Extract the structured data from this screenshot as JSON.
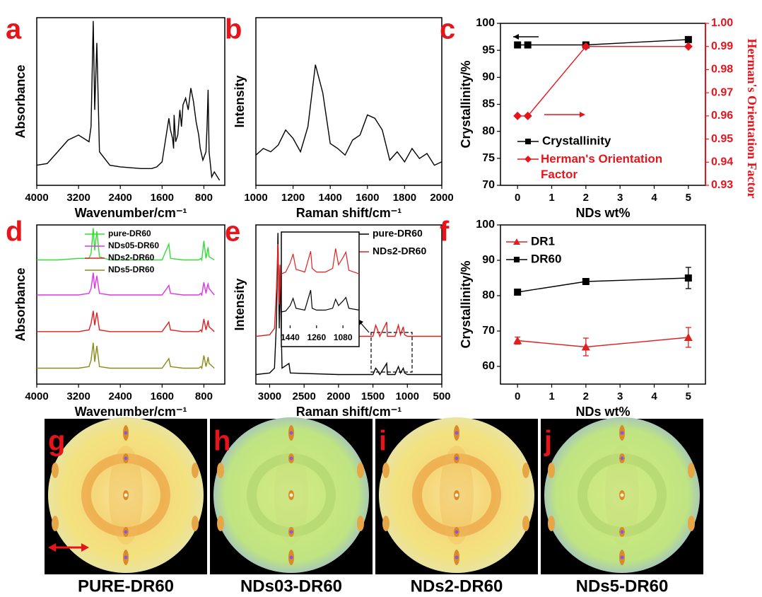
{
  "chart_data": [
    {
      "type": "line",
      "panel": "a",
      "ylabel": "Absorbance",
      "xlabel": "Wavenumber/cm⁻¹",
      "xlim": [
        4000,
        400
      ],
      "xticks": [
        4000,
        3200,
        2400,
        1600,
        800
      ],
      "ylim": [
        0,
        1
      ],
      "x": [
        4000,
        3800,
        3600,
        3400,
        3200,
        3000,
        2960,
        2918,
        2890,
        2850,
        2800,
        2600,
        2400,
        2000,
        1800,
        1700,
        1600,
        1470,
        1440,
        1400,
        1380,
        1370,
        1340,
        1300,
        1260,
        1230,
        1200,
        1150,
        1100,
        1050,
        1000,
        950,
        900,
        870,
        820,
        760,
        740,
        720,
        700,
        650,
        600,
        500
      ],
      "series": [
        {
          "color": "#000000",
          "values": [
            0.12,
            0.13,
            0.2,
            0.27,
            0.3,
            0.26,
            0.35,
            0.98,
            0.45,
            0.85,
            0.2,
            0.12,
            0.11,
            0.1,
            0.1,
            0.11,
            0.14,
            0.4,
            0.33,
            0.28,
            0.22,
            0.42,
            0.26,
            0.3,
            0.45,
            0.35,
            0.48,
            0.52,
            0.45,
            0.58,
            0.5,
            0.38,
            0.3,
            0.22,
            0.15,
            0.2,
            0.35,
            0.57,
            0.2,
            0.05,
            0.08,
            0.03
          ]
        }
      ]
    },
    {
      "type": "line",
      "panel": "b",
      "ylabel": "Intensity",
      "xlabel": "Raman shift/cm⁻¹",
      "xlim": [
        1000,
        2000
      ],
      "xticks": [
        1000,
        1200,
        1400,
        1600,
        1800,
        2000
      ],
      "ylim": [
        0,
        1
      ],
      "x": [
        1000,
        1040,
        1080,
        1120,
        1160,
        1200,
        1240,
        1280,
        1320,
        1360,
        1400,
        1440,
        1480,
        1520,
        1560,
        1600,
        1640,
        1680,
        1720,
        1760,
        1800,
        1840,
        1880,
        1920,
        1960,
        2000
      ],
      "series": [
        {
          "color": "#000000",
          "values": [
            0.18,
            0.22,
            0.2,
            0.24,
            0.33,
            0.28,
            0.2,
            0.35,
            0.72,
            0.55,
            0.25,
            0.22,
            0.18,
            0.27,
            0.3,
            0.42,
            0.4,
            0.33,
            0.15,
            0.2,
            0.14,
            0.22,
            0.16,
            0.19,
            0.12,
            0.14
          ]
        }
      ]
    },
    {
      "type": "line",
      "panel": "c",
      "ylabel": "Crystallinity/%",
      "y2label": "Herman's Orientation Factor",
      "xlabel": "NDs wt%",
      "xlim": [
        -0.5,
        5.5
      ],
      "xticks": [
        0,
        1,
        2,
        3,
        4,
        5
      ],
      "ylim": [
        70,
        100
      ],
      "yticks": [
        70,
        75,
        80,
        85,
        90,
        95,
        100
      ],
      "y2lim": [
        0.93,
        1.0
      ],
      "y2ticks": [
        0.93,
        0.94,
        0.95,
        0.96,
        0.97,
        0.98,
        0.99,
        {
          "value": 1.0,
          "label": "1.00"
        }
      ],
      "x": [
        0,
        0.3,
        2,
        5
      ],
      "series": [
        {
          "name": "Crystallinity",
          "color": "#000000",
          "marker": "square",
          "values": [
            96,
            96,
            96,
            97
          ]
        },
        {
          "name": "Herman's Orientation Factor",
          "color": "#e8141c",
          "marker": "diamond",
          "axis": "y2",
          "values": [
            0.96,
            0.96,
            0.99,
            0.99
          ]
        }
      ]
    },
    {
      "type": "line",
      "panel": "d",
      "ylabel": "Absorbance",
      "xlabel": "Wavenumber/cm⁻¹",
      "xlim": [
        4000,
        400
      ],
      "xticks": [
        4000,
        3200,
        2400,
        1600,
        800
      ],
      "ylim": [
        0,
        1
      ],
      "x": [
        4000,
        3600,
        3200,
        3000,
        2960,
        2918,
        2890,
        2850,
        2800,
        2600,
        2000,
        1700,
        1650,
        1600,
        1470,
        1440,
        1200,
        900,
        860,
        840,
        800,
        760,
        730,
        720,
        700,
        600
      ],
      "series": [
        {
          "name": "pure-DR60",
          "color": "#33dd33",
          "values": [
            0.78,
            0.78,
            0.79,
            0.79,
            0.82,
            0.98,
            0.84,
            0.96,
            0.8,
            0.78,
            0.78,
            0.78,
            0.78,
            0.78,
            0.88,
            0.79,
            0.78,
            0.78,
            0.79,
            0.78,
            0.9,
            0.79,
            0.84,
            0.86,
            0.8,
            0.78
          ]
        },
        {
          "name": "NDs05-DR60",
          "color": "#e033e8",
          "values": [
            0.56,
            0.56,
            0.56,
            0.57,
            0.6,
            0.7,
            0.6,
            0.68,
            0.57,
            0.56,
            0.56,
            0.56,
            0.56,
            0.56,
            0.62,
            0.57,
            0.56,
            0.56,
            0.57,
            0.56,
            0.64,
            0.57,
            0.62,
            0.63,
            0.6,
            0.56
          ]
        },
        {
          "name": "NDs2-DR60",
          "color": "#e02020",
          "values": [
            0.33,
            0.33,
            0.33,
            0.34,
            0.38,
            0.46,
            0.37,
            0.45,
            0.34,
            0.33,
            0.33,
            0.33,
            0.33,
            0.33,
            0.39,
            0.34,
            0.33,
            0.33,
            0.34,
            0.33,
            0.41,
            0.34,
            0.38,
            0.4,
            0.36,
            0.33
          ]
        },
        {
          "name": "NDs5-DR60",
          "color": "#8b8b1a",
          "values": [
            0.1,
            0.1,
            0.1,
            0.11,
            0.15,
            0.26,
            0.14,
            0.24,
            0.11,
            0.1,
            0.1,
            0.1,
            0.1,
            0.1,
            0.16,
            0.11,
            0.1,
            0.1,
            0.11,
            0.1,
            0.18,
            0.11,
            0.15,
            0.17,
            0.13,
            0.1
          ]
        }
      ]
    },
    {
      "type": "line",
      "panel": "e",
      "ylabel": "Intensity",
      "xlabel": "Raman shift/cm⁻¹",
      "xlim": [
        3200,
        500
      ],
      "xticks": [
        3000,
        2500,
        2000,
        1500,
        1000,
        500
      ],
      "ylim": [
        0,
        1
      ],
      "x": [
        3200,
        3000,
        2930,
        2900,
        2880,
        2860,
        2850,
        2820,
        2720,
        2700,
        2000,
        1500,
        1460,
        1440,
        1400,
        1300,
        1290,
        1180,
        1130,
        1100,
        1060,
        1040,
        1000,
        500
      ],
      "series": [
        {
          "name": "pure-DR60",
          "color": "#000000",
          "values": [
            0.06,
            0.07,
            0.1,
            0.4,
            0.95,
            0.35,
            0.72,
            0.1,
            0.13,
            0.07,
            0.06,
            0.06,
            0.1,
            0.09,
            0.06,
            0.13,
            0.06,
            0.06,
            0.11,
            0.07,
            0.1,
            0.07,
            0.06,
            0.06
          ]
        },
        {
          "name": "NDs2-DR60",
          "color": "#e02020",
          "values": [
            0.3,
            0.31,
            0.35,
            0.6,
            0.88,
            0.5,
            0.75,
            0.33,
            0.38,
            0.3,
            0.3,
            0.3,
            0.37,
            0.35,
            0.3,
            0.39,
            0.3,
            0.3,
            0.37,
            0.31,
            0.36,
            0.31,
            0.3,
            0.3
          ]
        }
      ]
    },
    {
      "type": "line",
      "xlim": [
        1500,
        970
      ],
      "xticks": [
        1440,
        1260,
        1080
      ],
      "ylim": [
        0,
        1
      ],
      "x": [
        1500,
        1470,
        1440,
        1420,
        1400,
        1340,
        1300,
        1290,
        1260,
        1200,
        1150,
        1130,
        1110,
        1080,
        1060,
        1040,
        970
      ],
      "series": [
        {
          "color": "#000000",
          "values": [
            0.18,
            0.19,
            0.25,
            0.33,
            0.22,
            0.2,
            0.42,
            0.22,
            0.2,
            0.2,
            0.22,
            0.32,
            0.25,
            0.3,
            0.34,
            0.22,
            0.2
          ]
        },
        {
          "color": "#e02020",
          "values": [
            0.6,
            0.62,
            0.72,
            0.82,
            0.65,
            0.62,
            0.85,
            0.66,
            0.62,
            0.62,
            0.66,
            0.88,
            0.7,
            0.78,
            0.84,
            0.64,
            0.6
          ]
        }
      ]
    },
    {
      "type": "line",
      "panel": "f",
      "ylabel": "Crystallinity/%",
      "xlabel": "NDs wt%",
      "xlim": [
        -0.5,
        5.5
      ],
      "xticks": [
        0,
        1,
        2,
        3,
        4,
        5
      ],
      "ylim": [
        55,
        100
      ],
      "yticks": [
        60,
        70,
        80,
        90,
        100
      ],
      "x": [
        0,
        2,
        5
      ],
      "series": [
        {
          "name": "DR1",
          "color": "#e02020",
          "marker": "triangle",
          "values": [
            67.3,
            65.5,
            68.2
          ],
          "errors": [
            1,
            2.5,
            2.8
          ]
        },
        {
          "name": "DR60",
          "color": "#000000",
          "marker": "square",
          "values": [
            81,
            84,
            85
          ],
          "errors": [
            0.5,
            0.5,
            3
          ]
        }
      ]
    }
  ],
  "images": [
    {
      "panel": "g",
      "caption": "PURE-DR60"
    },
    {
      "panel": "h",
      "caption": "NDs03-DR60"
    },
    {
      "panel": "i",
      "caption": "NDs2-DR60"
    },
    {
      "panel": "j",
      "caption": "NDs5-DR60"
    }
  ]
}
